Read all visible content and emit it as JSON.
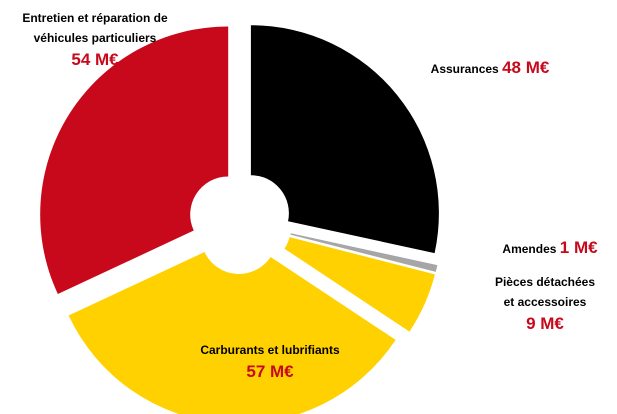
{
  "chart_data": {
    "type": "pie",
    "categories": [
      "Assurances",
      "Amendes",
      "Pièces détachées et accessoires",
      "Carburants et lubrifiants",
      "Entretien et réparation de véhicules particuliers"
    ],
    "values": [
      48,
      1,
      9,
      57,
      54
    ],
    "value_labels": [
      "48 M€",
      "1 M€",
      "9 M€",
      "57 M€",
      "54 M€"
    ],
    "colors": [
      "#000000",
      "#a6a6a6",
      "#ffd100",
      "#ffd100",
      "#c8091c"
    ],
    "donut": true
  }
}
